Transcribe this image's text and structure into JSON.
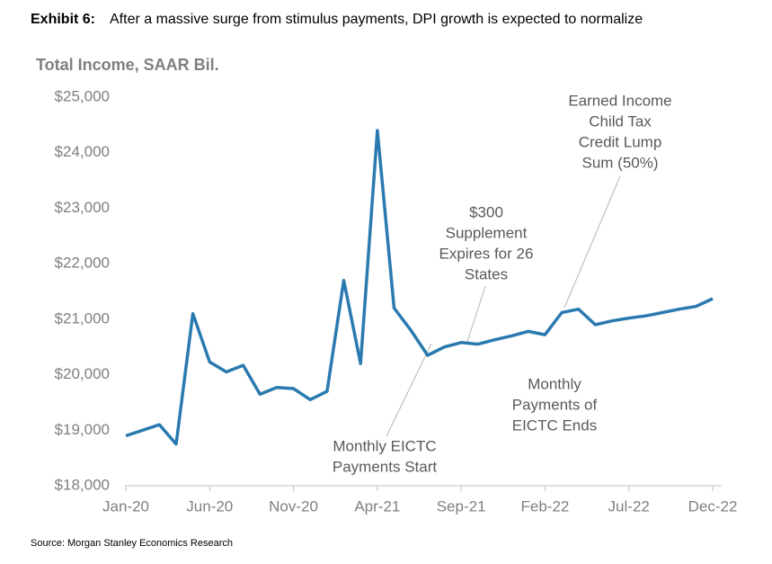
{
  "chart_data": {
    "type": "line",
    "title_prefix": "Exhibit 6:",
    "title": "After a massive surge from stimulus payments, DPI growth is expected to normalize",
    "y_axis_label": "Total Income, SAAR  Bil.",
    "source": "Source: Morgan Stanley Economics Research",
    "categories": [
      "Jan-20",
      null,
      null,
      null,
      null,
      "Jun-20",
      null,
      null,
      null,
      null,
      "Nov-20",
      null,
      null,
      null,
      null,
      "Apr-21",
      null,
      null,
      null,
      null,
      "Sep-21",
      null,
      null,
      null,
      null,
      "Feb-22",
      null,
      null,
      null,
      null,
      "Jul-22",
      null,
      null,
      null,
      null,
      "Dec-22"
    ],
    "series": [
      {
        "name": "Total Income",
        "color": "#2a7ab0",
        "values": [
          18900,
          19000,
          19100,
          18750,
          21100,
          20230,
          20050,
          20170,
          19650,
          19770,
          19750,
          19550,
          19700,
          21700,
          20200,
          24400,
          21200,
          20800,
          20350,
          20500,
          20580,
          20550,
          20630,
          20700,
          20780,
          20720,
          21120,
          21180,
          20900,
          20970,
          21020,
          21060,
          21120,
          21180,
          21230,
          21370
        ]
      }
    ],
    "ylim": [
      18000,
      25000
    ],
    "yticks": [
      {
        "value": 18000,
        "label": "$18,000"
      },
      {
        "value": 19000,
        "label": "$19,000"
      },
      {
        "value": 20000,
        "label": "$20,000"
      },
      {
        "value": 21000,
        "label": "$21,000"
      },
      {
        "value": 22000,
        "label": "$22,000"
      },
      {
        "value": 23000,
        "label": "$23,000"
      },
      {
        "value": 24000,
        "label": "$24,000"
      },
      {
        "value": 25000,
        "label": "$25,000"
      }
    ],
    "annotations": [
      {
        "lines": [
          "Monthly EICTC",
          "Payments Start"
        ]
      },
      {
        "lines": [
          "$300",
          "Supplement",
          "Expires for 26",
          "States"
        ]
      },
      {
        "lines": [
          "Earned Income",
          "Child Tax",
          "Credit Lump",
          "Sum (50%)"
        ]
      },
      {
        "lines": [
          "Monthly",
          "Payments of",
          "EICTC  Ends"
        ]
      }
    ]
  }
}
